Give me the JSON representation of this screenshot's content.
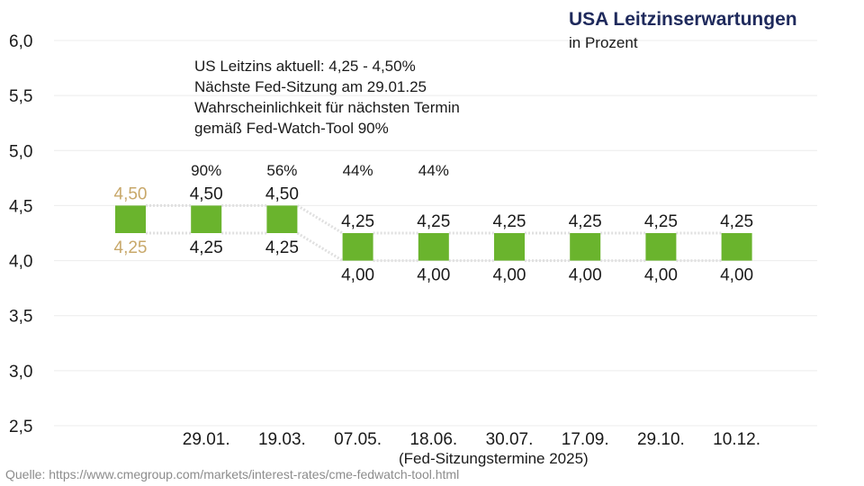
{
  "chart_data": {
    "type": "range-markers",
    "title": "USA Leitzinserwartungen",
    "subtitle": "in Prozent",
    "xlabel": "(Fed-Sitzungstermine 2025)",
    "ylabel": "",
    "ylim": [
      2.5,
      6.0
    ],
    "yticks": [
      "6,0",
      "5,5",
      "5,0",
      "4,5",
      "4,0",
      "3,5",
      "3,0",
      "2,5"
    ],
    "ytick_values": [
      6.0,
      5.5,
      5.0,
      4.5,
      4.0,
      3.5,
      3.0,
      2.5
    ],
    "grid": true,
    "categories": [
      "",
      "29.01.",
      "19.03.",
      "07.05.",
      "18.06.",
      "30.07.",
      "17.09.",
      "29.10.",
      "10.12."
    ],
    "ranges": [
      {
        "low": 4.25,
        "high": 4.5,
        "low_label": "4,25",
        "high_label": "4,50",
        "current": true
      },
      {
        "low": 4.25,
        "high": 4.5,
        "low_label": "4,25",
        "high_label": "4,50"
      },
      {
        "low": 4.25,
        "high": 4.5,
        "low_label": "4,25",
        "high_label": "4,50"
      },
      {
        "low": 4.0,
        "high": 4.25,
        "low_label": "4,00",
        "high_label": "4,25"
      },
      {
        "low": 4.0,
        "high": 4.25,
        "low_label": "4,00",
        "high_label": "4,25"
      },
      {
        "low": 4.0,
        "high": 4.25,
        "low_label": "4,00",
        "high_label": "4,25"
      },
      {
        "low": 4.0,
        "high": 4.25,
        "low_label": "4,00",
        "high_label": "4,25"
      },
      {
        "low": 4.0,
        "high": 4.25,
        "low_label": "4,00",
        "high_label": "4,25"
      },
      {
        "low": 4.0,
        "high": 4.25,
        "low_label": "4,00",
        "high_label": "4,25"
      }
    ],
    "probabilities": [
      "",
      "90%",
      "56%",
      "44%",
      "44%",
      "",
      "",
      "",
      ""
    ],
    "annotation": [
      "US Leitzins aktuell: 4,25 - 4,50%",
      "Nächste Fed-Sitzung am 29.01.25",
      "Wahrscheinlichkeit für nächsten Termin",
      "gemäß Fed-Watch-Tool 90%"
    ],
    "colors": {
      "bar": "#6ab42d",
      "current_label": "#c8a86a",
      "label": "#1a1a1a",
      "grid": "#ececec",
      "connector": "#e0e0e0",
      "title": "#1f2a5c"
    }
  },
  "source": "Quelle: https://www.cmegroup.com/markets/interest-rates/cme-fedwatch-tool.html"
}
